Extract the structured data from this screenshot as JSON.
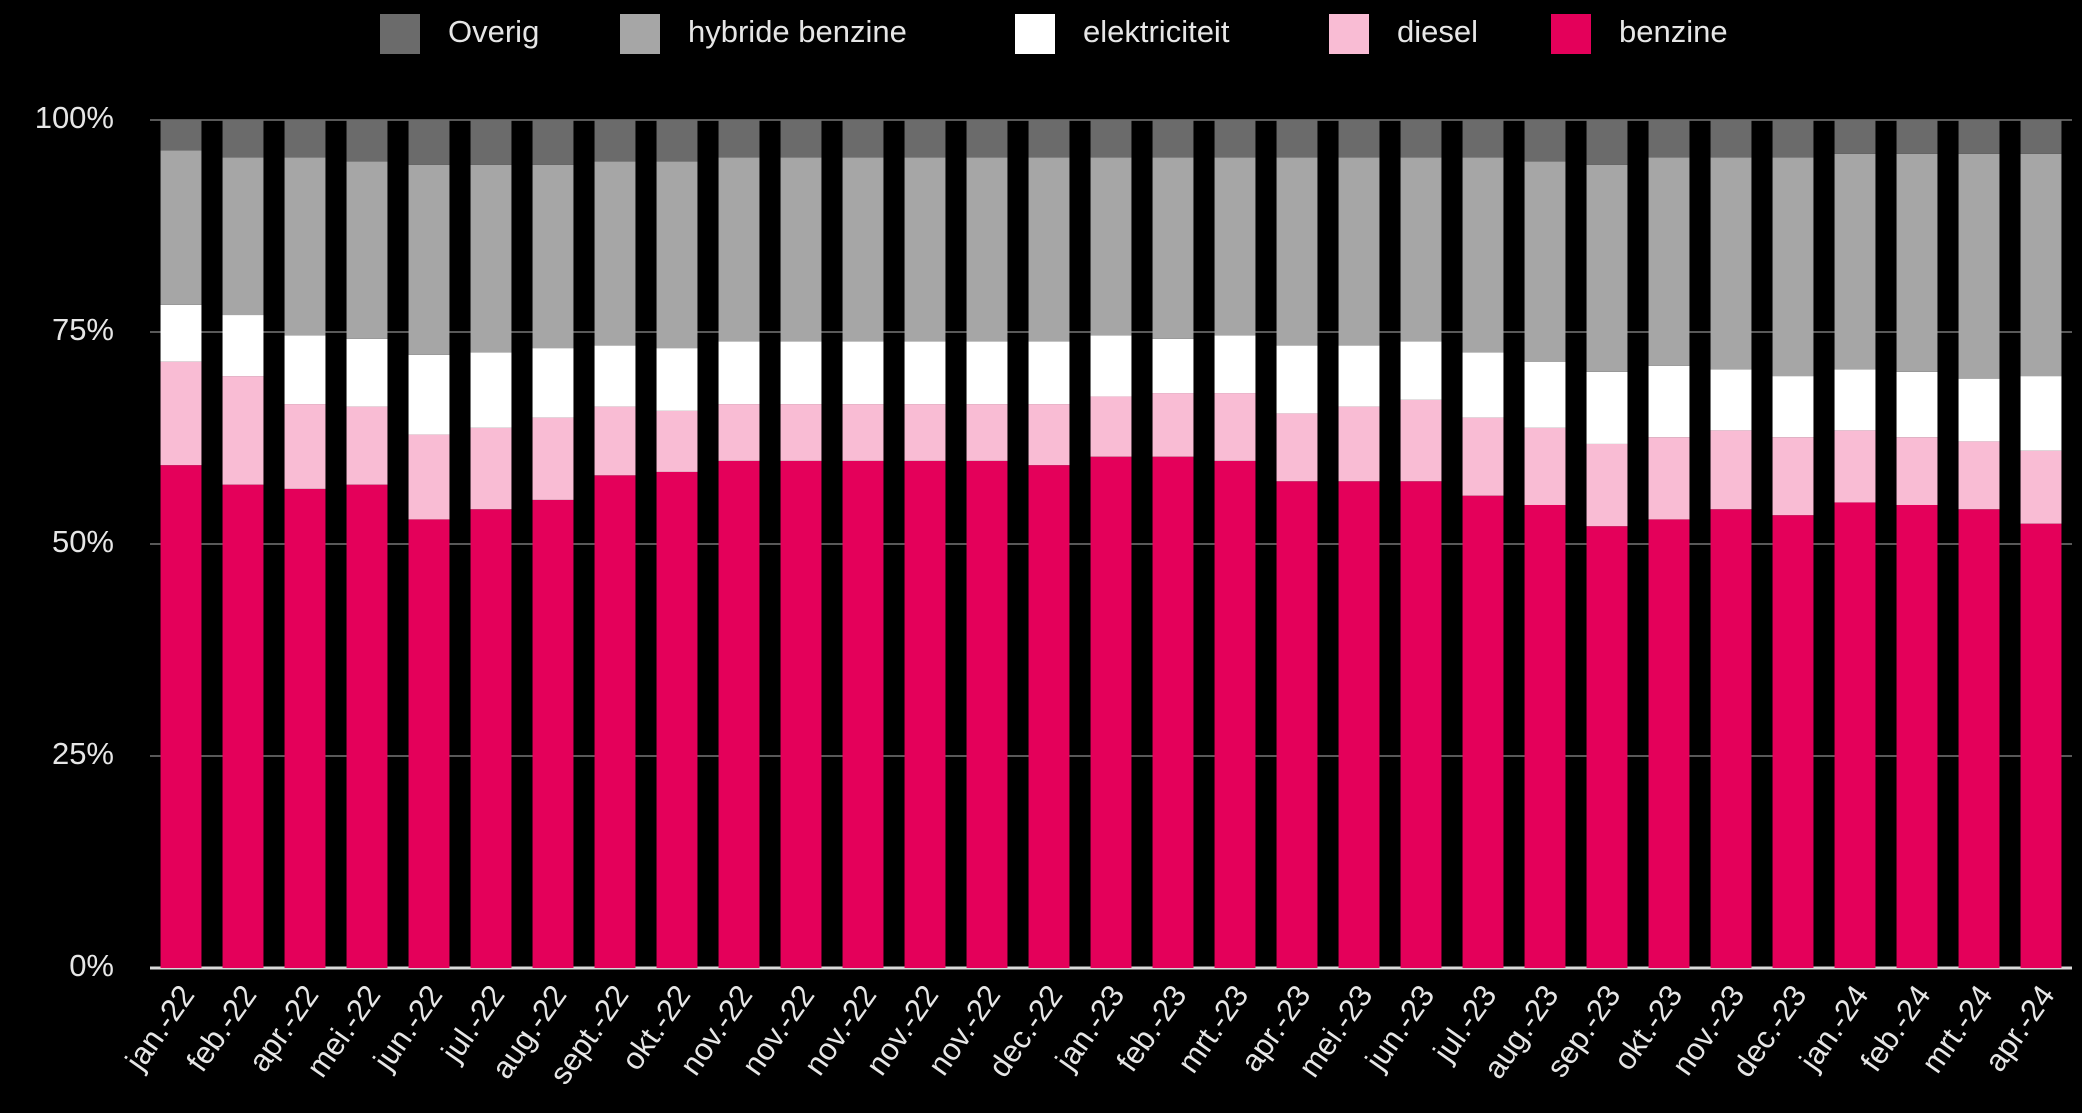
{
  "chart_data": {
    "type": "stacked_bar",
    "categories": [
      "jan.-22",
      "feb.-22",
      "apr.-22",
      "mei.-22",
      "jun.-22",
      "jul.-22",
      "aug.-22",
      "sept.-22",
      "okt.-22",
      "nov.-22",
      "nov.-22",
      "nov.-22",
      "nov.-22",
      "nov.-22",
      "dec.-22",
      "jan.-23",
      "feb.-23",
      "mrt.-23",
      "apr.-23",
      "mei.-23",
      "jun.-23",
      "jul.-23",
      "aug.-23",
      "sep.-23",
      "okt.-23",
      "nov.-23",
      "dec.-23",
      "jan.-24",
      "feb.-24",
      "mrt.-24",
      "apr.-24"
    ],
    "series": [
      {
        "name": "benzine",
        "color": "#e4005a",
        "values": [
          59.3,
          57.0,
          56.5,
          57.0,
          52.9,
          54.1,
          55.2,
          58.1,
          58.5,
          59.8,
          59.8,
          59.8,
          59.8,
          59.8,
          59.3,
          60.3,
          60.3,
          59.8,
          57.4,
          57.4,
          57.4,
          55.7,
          54.6,
          52.1,
          52.9,
          54.1,
          53.4,
          54.9,
          54.6,
          54.1,
          52.4
        ]
      },
      {
        "name": "diesel",
        "color": "#f9bcd4",
        "values": [
          12.2,
          12.8,
          10.0,
          9.2,
          10.0,
          9.6,
          9.7,
          8.1,
          7.2,
          6.7,
          6.7,
          6.7,
          6.7,
          6.7,
          7.2,
          7.1,
          7.5,
          8.0,
          8.0,
          8.8,
          9.6,
          9.2,
          9.1,
          9.7,
          9.7,
          9.3,
          9.2,
          8.5,
          8.0,
          8.0,
          8.6
        ]
      },
      {
        "name": "elektriciteit",
        "color": "#ffffff",
        "values": [
          6.7,
          7.2,
          8.1,
          8.0,
          9.4,
          8.9,
          8.2,
          7.2,
          7.4,
          7.4,
          7.4,
          7.4,
          7.4,
          7.4,
          7.4,
          7.2,
          6.4,
          6.8,
          8.0,
          7.2,
          6.9,
          7.7,
          7.8,
          8.5,
          8.4,
          7.2,
          7.2,
          7.2,
          7.7,
          7.4,
          8.8
        ]
      },
      {
        "name": "hybride benzine",
        "color": "#a6a6a6",
        "values": [
          18.2,
          18.6,
          21.0,
          20.9,
          22.4,
          22.1,
          21.6,
          21.7,
          22.0,
          21.7,
          21.7,
          21.7,
          21.7,
          21.7,
          21.7,
          21.0,
          21.4,
          21.0,
          22.2,
          22.2,
          21.7,
          23.0,
          23.6,
          24.4,
          24.6,
          25.0,
          25.8,
          25.4,
          25.7,
          26.5,
          26.2
        ]
      },
      {
        "name": "Overig",
        "color": "#6b6b6b",
        "values": [
          3.6,
          4.4,
          4.4,
          4.9,
          5.3,
          5.3,
          5.3,
          4.9,
          4.9,
          4.4,
          4.4,
          4.4,
          4.4,
          4.4,
          4.4,
          4.4,
          4.4,
          4.4,
          4.4,
          4.4,
          4.4,
          4.4,
          4.9,
          5.3,
          4.4,
          4.4,
          4.4,
          4.0,
          4.0,
          4.0,
          4.0
        ]
      }
    ],
    "ylim": [
      0,
      100
    ],
    "yticks": [
      {
        "value": 0,
        "label": "0%"
      },
      {
        "value": 25,
        "label": "25%"
      },
      {
        "value": 50,
        "label": "50%"
      },
      {
        "value": 75,
        "label": "75%"
      },
      {
        "value": 100,
        "label": "100%"
      }
    ],
    "grid": true,
    "legend": "top"
  }
}
